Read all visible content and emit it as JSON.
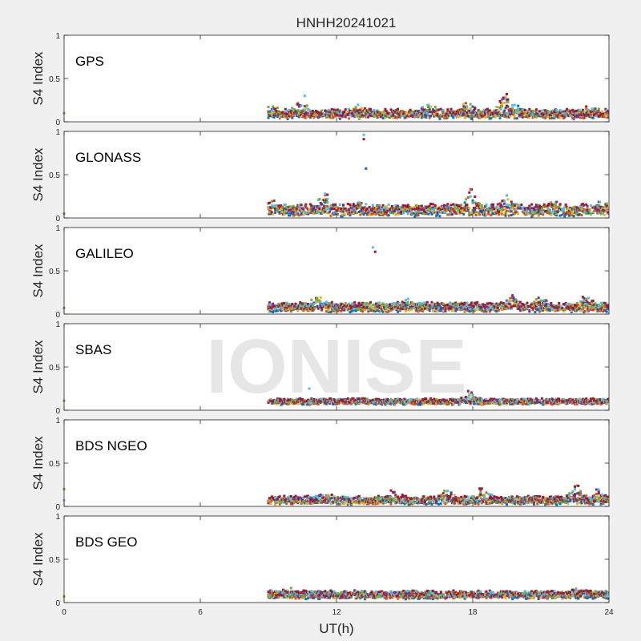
{
  "figure": {
    "title": "HNHH20241021",
    "xlabel": "UT(h)",
    "ylabel": "S4 Index",
    "watermark": "IONISE"
  },
  "colors": {
    "background": "#f0f0f0",
    "panel": "#ffffff",
    "axis": "#262626",
    "watermark": "#e6e6e6",
    "series": [
      "#0072BD",
      "#D95319",
      "#EDB120",
      "#7E2F8E",
      "#77AC30",
      "#4DBEEE",
      "#A2142F"
    ]
  },
  "chart_data": [
    {
      "type": "scatter",
      "label": "GPS",
      "xlim": [
        0,
        24
      ],
      "ylim": [
        0,
        1
      ],
      "xticks": [
        "0",
        "6",
        "12",
        "18",
        "24"
      ],
      "yticks": [
        "0",
        "0.5",
        "1"
      ],
      "data_start": 9,
      "data_end": 24,
      "baseline": 0.09,
      "spread": 0.04,
      "bursts": [
        [
          9.1,
          0.16
        ],
        [
          10.4,
          0.28
        ],
        [
          12.9,
          0.18
        ],
        [
          16.0,
          0.22
        ],
        [
          17.8,
          0.24
        ],
        [
          19.4,
          0.33
        ],
        [
          20.0,
          0.22
        ],
        [
          23.2,
          0.16
        ]
      ],
      "outliers": [
        [
          0,
          0.1
        ],
        [
          10.6,
          0.3
        ],
        [
          19.5,
          0.32
        ]
      ]
    },
    {
      "type": "scatter",
      "label": "GLONASS",
      "xlim": [
        0,
        24
      ],
      "ylim": [
        0,
        1
      ],
      "xticks": [
        "0",
        "6",
        "12",
        "18",
        "24"
      ],
      "yticks": [
        "0",
        "0.5",
        "1"
      ],
      "data_start": 9,
      "data_end": 24,
      "baseline": 0.09,
      "spread": 0.05,
      "bursts": [
        [
          9.2,
          0.2
        ],
        [
          11.5,
          0.25
        ],
        [
          13.0,
          0.18
        ],
        [
          17.9,
          0.32
        ],
        [
          19.5,
          0.26
        ],
        [
          21.5,
          0.18
        ],
        [
          23.7,
          0.15
        ]
      ],
      "outliers": [
        [
          0,
          0.05
        ],
        [
          13.2,
          0.96
        ],
        [
          13.2,
          0.91
        ],
        [
          13.3,
          0.57
        ],
        [
          17.9,
          0.33
        ]
      ]
    },
    {
      "type": "scatter",
      "label": "GALILEO",
      "xlim": [
        0,
        24
      ],
      "ylim": [
        0,
        1
      ],
      "xticks": [
        "0",
        "6",
        "12",
        "18",
        "24"
      ],
      "yticks": [
        "0",
        "0.5",
        "1"
      ],
      "data_start": 9,
      "data_end": 24,
      "baseline": 0.08,
      "spread": 0.04,
      "bursts": [
        [
          11.2,
          0.18
        ],
        [
          15.0,
          0.15
        ],
        [
          19.8,
          0.22
        ],
        [
          21.0,
          0.18
        ],
        [
          23.0,
          0.18
        ]
      ],
      "outliers": [
        [
          0,
          0.07
        ],
        [
          13.6,
          0.77
        ],
        [
          13.7,
          0.72
        ]
      ]
    },
    {
      "type": "scatter",
      "label": "SBAS",
      "xlim": [
        0,
        24
      ],
      "ylim": [
        0,
        1
      ],
      "xticks": [
        "0",
        "6",
        "12",
        "18",
        "24"
      ],
      "yticks": [
        "0",
        "0.5",
        "1"
      ],
      "data_start": 9,
      "data_end": 24,
      "baseline": 0.1,
      "spread": 0.025,
      "bursts": [
        [
          17.9,
          0.22
        ],
        [
          13.0,
          0.14
        ]
      ],
      "outliers": [
        [
          0,
          0.11
        ],
        [
          10.8,
          0.25
        ],
        [
          17.8,
          0.22
        ]
      ]
    },
    {
      "type": "scatter",
      "label": "BDS NGEO",
      "xlim": [
        0,
        24
      ],
      "ylim": [
        0,
        1
      ],
      "xticks": [
        "0",
        "6",
        "12",
        "18",
        "24"
      ],
      "yticks": [
        "0",
        "0.5",
        "1"
      ],
      "data_start": 9,
      "data_end": 24,
      "baseline": 0.07,
      "spread": 0.035,
      "bursts": [
        [
          11.5,
          0.15
        ],
        [
          14.5,
          0.16
        ],
        [
          16.9,
          0.22
        ],
        [
          18.5,
          0.22
        ],
        [
          22.6,
          0.24
        ],
        [
          23.6,
          0.2
        ]
      ],
      "outliers": [
        [
          0,
          0.2
        ],
        [
          0,
          0.07
        ],
        [
          22.5,
          0.23
        ]
      ]
    },
    {
      "type": "scatter",
      "label": "BDS GEO",
      "xlim": [
        0,
        24
      ],
      "ylim": [
        0,
        1
      ],
      "xticks": [
        "0",
        "6",
        "12",
        "18",
        "24"
      ],
      "yticks": [
        "0",
        "0.5",
        "1"
      ],
      "data_start": 9,
      "data_end": 24,
      "baseline": 0.09,
      "spread": 0.035,
      "bursts": [
        [
          10.0,
          0.14
        ],
        [
          22.5,
          0.14
        ]
      ],
      "outliers": [
        [
          0,
          0.07
        ]
      ]
    }
  ]
}
